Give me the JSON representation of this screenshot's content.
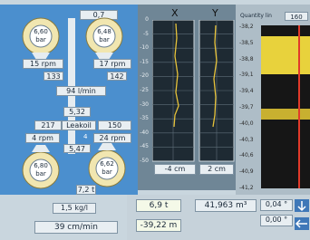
{
  "left_panel": {
    "top_value": "0,7",
    "gauges_top": [
      {
        "value": "6,60",
        "unit": "bar"
      },
      {
        "value": "6,48",
        "unit": "bar"
      }
    ],
    "rpm_top": [
      "15 rpm",
      "17 rpm"
    ],
    "counts_top": [
      "133",
      "142"
    ],
    "flow": "94 l/min",
    "mid_value": "5,32",
    "leak_row": [
      "217",
      "Leakoil",
      "150"
    ],
    "rpm_bottom": [
      "4 rpm",
      "4",
      "24 rpm"
    ],
    "lower_value": "5,47",
    "gauges_bottom": [
      {
        "value": "6,80",
        "unit": "bar"
      },
      {
        "value": "6,62",
        "unit": "bar"
      }
    ],
    "weight": "7,2 t",
    "density": "1,5 kg/l",
    "speed": "39 cm/min"
  },
  "plots": {
    "titles": [
      "X",
      "Y"
    ],
    "yticks": [
      "0",
      "-5",
      "-10",
      "-15",
      "-20",
      "-25",
      "-30",
      "-35",
      "-40",
      "-45",
      "-50"
    ],
    "readouts": [
      "-4 cm",
      "2 cm"
    ]
  },
  "right_panel": {
    "title": "Quantity lin",
    "value": "160",
    "scale": [
      "-38,2",
      "-38,5",
      "-38,8",
      "-39,1",
      "-39,4",
      "-39,7",
      "-40,0",
      "-40,3",
      "-40,6",
      "-40,9",
      "-41,2"
    ]
  },
  "bottom": {
    "load": "6,9 t",
    "volume": "41,963 m³",
    "angle_1": "0,04 °",
    "depth": "-39,22 m",
    "angle_2": "0,00 °"
  }
}
